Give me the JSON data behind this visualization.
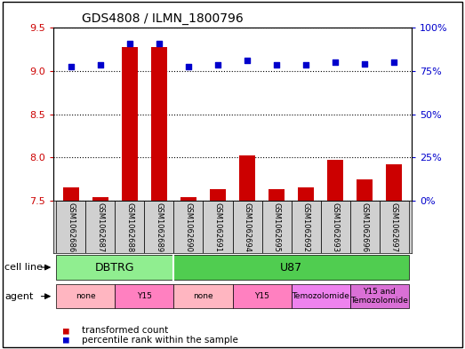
{
  "title": "GDS4808 / ILMN_1800796",
  "samples": [
    "GSM1062686",
    "GSM1062687",
    "GSM1062688",
    "GSM1062689",
    "GSM1062690",
    "GSM1062691",
    "GSM1062694",
    "GSM1062695",
    "GSM1062692",
    "GSM1062693",
    "GSM1062696",
    "GSM1062697"
  ],
  "red_values": [
    7.65,
    7.54,
    9.28,
    9.28,
    7.54,
    7.63,
    8.02,
    7.63,
    7.65,
    7.97,
    7.75,
    7.92
  ],
  "blue_values": [
    9.05,
    9.07,
    9.32,
    9.32,
    9.05,
    9.07,
    9.12,
    9.07,
    9.07,
    9.1,
    9.08,
    9.1
  ],
  "ylim_left": [
    7.5,
    9.5
  ],
  "ylim_right": [
    0,
    100
  ],
  "yticks_left": [
    7.5,
    8.0,
    8.5,
    9.0,
    9.5
  ],
  "yticks_right": [
    0,
    25,
    50,
    75,
    100
  ],
  "ytick_labels_right": [
    "0%",
    "25%",
    "50%",
    "75%",
    "100%"
  ],
  "cell_line_groups": [
    {
      "label": "DBTRG",
      "start": 0,
      "end": 3,
      "color": "#90EE90"
    },
    {
      "label": "U87",
      "start": 4,
      "end": 11,
      "color": "#50CD50"
    }
  ],
  "agent_groups": [
    {
      "label": "none",
      "start": 0,
      "end": 1,
      "color": "#FFB6C1"
    },
    {
      "label": "Y15",
      "start": 2,
      "end": 3,
      "color": "#FF80C0"
    },
    {
      "label": "none",
      "start": 4,
      "end": 5,
      "color": "#FFB6C1"
    },
    {
      "label": "Y15",
      "start": 6,
      "end": 7,
      "color": "#FF80C0"
    },
    {
      "label": "Temozolomide",
      "start": 8,
      "end": 9,
      "color": "#EE82EE"
    },
    {
      "label": "Y15 and\nTemozolomide",
      "start": 10,
      "end": 11,
      "color": "#DA70D6"
    }
  ],
  "bar_color": "#CC0000",
  "dot_color": "#0000CC",
  "bar_width": 0.55,
  "left_tick_color": "#CC0000",
  "right_tick_color": "#0000CC",
  "grid_color": "#000000",
  "sample_box_color": "#D0D0D0",
  "plot_bg_color": "#FFFFFF"
}
